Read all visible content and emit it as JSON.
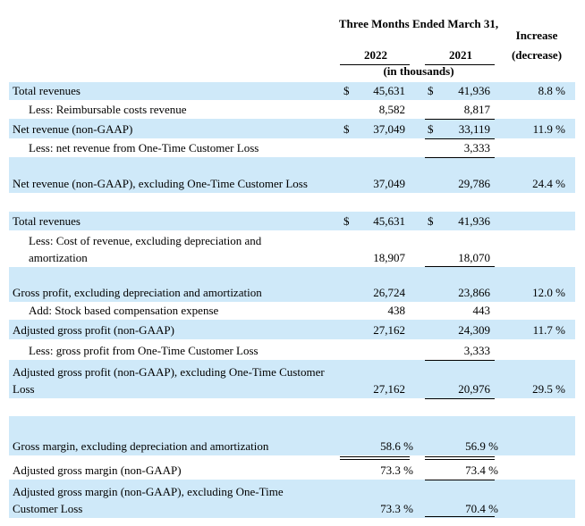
{
  "header": {
    "period": "Three Months Ended March 31,",
    "col_2022": "2022",
    "col_2021": "2021",
    "units": "(in thousands)",
    "change": "Increase (decrease)"
  },
  "rows": [
    {
      "label": "Total revenues",
      "cur_2022": "$",
      "v2022": "45,631",
      "cur_2021": "$",
      "v2021": "41,936",
      "change": "8.8 %"
    },
    {
      "label": "Less: Reimbursable costs revenue",
      "v2022": "8,582",
      "v2021": "8,817"
    },
    {
      "label": "Net revenue (non-GAAP)",
      "cur_2022": "$",
      "v2022": "37,049",
      "cur_2021": "$",
      "v2021": "33,119",
      "change": "11.9 %"
    },
    {
      "label": "Less: net revenue from One-Time Customer Loss",
      "v2021": "3,333"
    },
    {
      "label": "Net revenue (non-GAAP), excluding One-Time Customer Loss",
      "v2022": "37,049",
      "v2021": "29,786",
      "change": "24.4 %"
    },
    {
      "label": "Total revenues",
      "cur_2022": "$",
      "v2022": "45,631",
      "cur_2021": "$",
      "v2021": "41,936"
    },
    {
      "label": "Less: Cost of revenue, excluding depreciation and amortization",
      "v2022": "18,907",
      "v2021": "18,070"
    },
    {
      "label": "Gross profit, excluding depreciation and amortization",
      "v2022": "26,724",
      "v2021": "23,866",
      "change": "12.0 %"
    },
    {
      "label": "Add: Stock based compensation expense",
      "v2022": "438",
      "v2021": "443"
    },
    {
      "label": "Adjusted gross profit (non-GAAP)",
      "v2022": "27,162",
      "v2021": "24,309",
      "change": "11.7 %"
    },
    {
      "label": "Less: gross profit  from One-Time Customer Loss",
      "v2021": "3,333"
    },
    {
      "label": "Adjusted gross profit (non-GAAP), excluding One-Time Customer Loss",
      "v2022": "27,162",
      "v2021": "20,976",
      "change": "29.5 %"
    },
    {
      "label": "Gross margin, excluding depreciation and amortization",
      "v2022": "58.6 %",
      "v2021": "56.9 %"
    },
    {
      "label": "Adjusted gross margin (non-GAAP)",
      "v2022": "73.3 %",
      "v2021": "73.4 %"
    },
    {
      "label": "Adjusted gross margin (non-GAAP), excluding One-Time Customer Loss",
      "v2022": "73.3 %",
      "v2021": "70.4 %"
    }
  ]
}
